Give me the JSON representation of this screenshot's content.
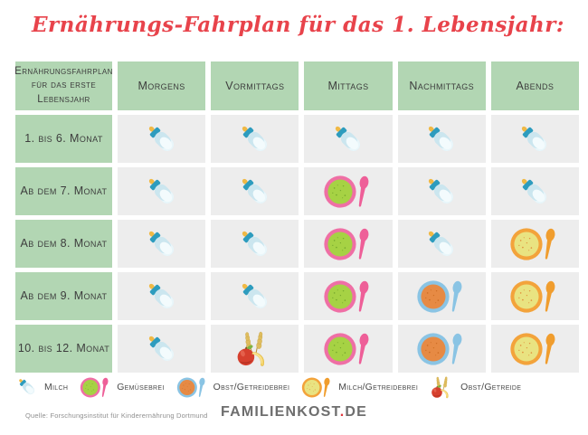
{
  "title": "Ernährungs-Fahrplan für das 1. Lebensjahr:",
  "table": {
    "corner": {
      "line1": "Ernährungsfahrplan",
      "line2": "für das erste Lebensjahr"
    },
    "columns": [
      "Morgens",
      "Vormittags",
      "Mittags",
      "Nachmittags",
      "Abends"
    ],
    "rows": [
      {
        "label": "1. bis 6. Monat",
        "cells": [
          "milk-bottle",
          "milk-bottle",
          "milk-bottle",
          "milk-bottle",
          "milk-bottle"
        ]
      },
      {
        "label": "Ab dem 7. Monat",
        "cells": [
          "milk-bottle",
          "milk-bottle",
          "veggie-puree-bowl",
          "milk-bottle",
          "milk-bottle"
        ]
      },
      {
        "label": "Ab dem 8. Monat",
        "cells": [
          "milk-bottle",
          "milk-bottle",
          "veggie-puree-bowl",
          "milk-bottle",
          "milk-cereal-puree-bowl"
        ]
      },
      {
        "label": "Ab dem 9. Monat",
        "cells": [
          "milk-bottle",
          "milk-bottle",
          "veggie-puree-bowl",
          "fruit-cereal-puree-bowl",
          "milk-cereal-puree-bowl"
        ]
      },
      {
        "label": "10. bis 12. Monat",
        "cells": [
          "milk-bottle",
          "fruit-cereal",
          "veggie-puree-bowl",
          "fruit-cereal-puree-bowl",
          "milk-cereal-puree-bowl"
        ]
      }
    ]
  },
  "legend": [
    {
      "icon": "milk-bottle",
      "label": "Milch"
    },
    {
      "icon": "veggie-puree-bowl",
      "label": "Gemüsebrei"
    },
    {
      "icon": "fruit-cereal-puree-bowl",
      "label": "Obst/Getreidebrei"
    },
    {
      "icon": "milk-cereal-puree-bowl",
      "label": "Milch/Getreidebrei"
    },
    {
      "icon": "fruit-cereal",
      "label": "Obst/Getreide"
    }
  ],
  "footer": {
    "source": "Quelle: Forschungsinstitut für Kinderernährung Dortmund",
    "brand": "FAMILIENKOST",
    "brand_separator": ".",
    "brand_tld": "DE"
  },
  "colors": {
    "title_red": "#e8434b",
    "cell_green": "#b2d6b3",
    "cell_gray": "#ededed",
    "brand_dot_red": "#e0393f"
  }
}
